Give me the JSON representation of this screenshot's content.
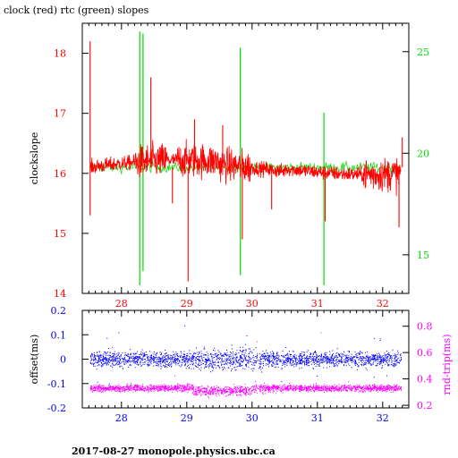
{
  "title": "clock (red) rtc (green) slopes",
  "footer": "2017-08-27  monopole.physics.ubc.ca",
  "colors": {
    "clock": "#ff0000",
    "rtc": "#00dd00",
    "offset": "#0000ff",
    "roundtrip": "#ff00ff",
    "axis": "#000000"
  },
  "chart_data": [
    {
      "type": "line",
      "ylabel": "clockslope",
      "y2label": "",
      "xlim": [
        27.4,
        32.4
      ],
      "ylim": [
        14,
        18.5
      ],
      "y2lim": [
        13.1,
        26.4
      ],
      "xticks": [
        28,
        29,
        30,
        31,
        32
      ],
      "yticks": [
        14,
        15,
        16,
        17,
        18
      ],
      "y2ticks": [
        15,
        20,
        25
      ],
      "series": [
        {
          "name": "clock",
          "axis": "left",
          "baseline": 16.1,
          "spikes": [
            [
              27.52,
              18.2
            ],
            [
              27.52,
              15.3
            ],
            [
              28.45,
              17.6
            ],
            [
              28.78,
              15.5
            ],
            [
              29.02,
              14.2
            ],
            [
              29.12,
              16.9
            ],
            [
              29.55,
              16.8
            ],
            [
              29.85,
              14.9
            ],
            [
              30.3,
              15.4
            ],
            [
              31.12,
              15.2
            ],
            [
              32.25,
              15.1
            ],
            [
              32.3,
              16.6
            ]
          ]
        },
        {
          "name": "rtc",
          "axis": "right",
          "baseline": 19.3,
          "spikes": [
            [
              28.28,
              26.0
            ],
            [
              28.28,
              13.5
            ],
            [
              28.33,
              25.9
            ],
            [
              28.33,
              14.2
            ],
            [
              29.82,
              25.2
            ],
            [
              29.82,
              14.0
            ],
            [
              31.1,
              22.0
            ],
            [
              31.1,
              13.5
            ]
          ]
        }
      ]
    },
    {
      "type": "scatter",
      "ylabel": "offset(ms)",
      "y2label": "rnd-trip(ms)",
      "xlim": [
        27.4,
        32.4
      ],
      "ylim": [
        -0.2,
        0.2
      ],
      "y2lim": [
        0.18,
        0.92
      ],
      "xticks": [
        28,
        29,
        30,
        31,
        32
      ],
      "yticks": [
        -0.2,
        -0.1,
        0,
        0.1,
        0.2
      ],
      "y2ticks": [
        0.2,
        0.4,
        0.6,
        0.8
      ],
      "series": [
        {
          "name": "offset",
          "axis": "left",
          "center": 0.0,
          "spread": 0.03
        },
        {
          "name": "roundtrip",
          "axis": "right",
          "center": 0.33,
          "spread": 0.025
        }
      ]
    }
  ]
}
